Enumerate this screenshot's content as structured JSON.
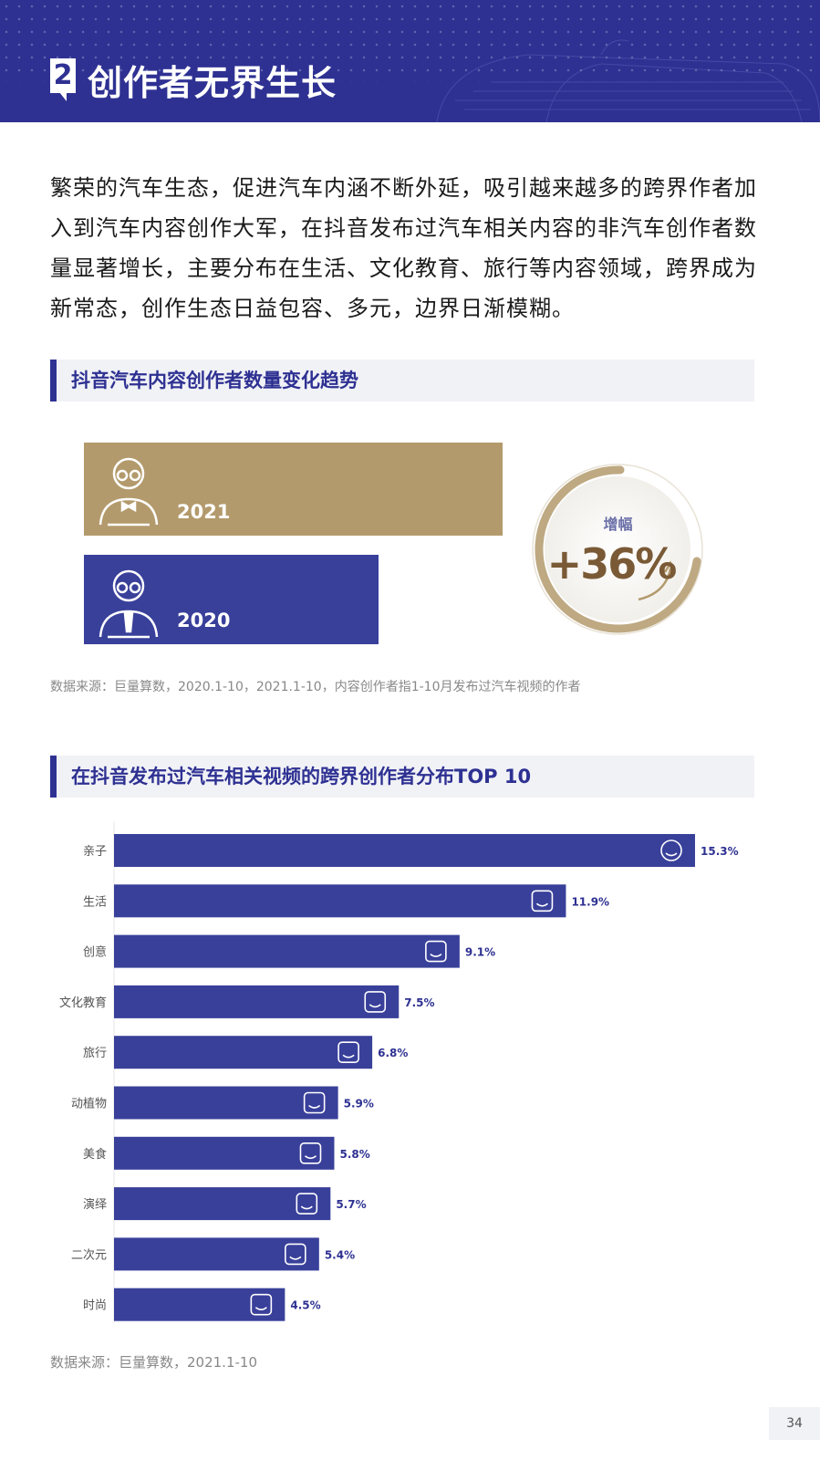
{
  "header": {
    "number": "2",
    "title": "创作者无界生长"
  },
  "intro": "繁荣的汽车生态，促进汽车内涵不断外延，吸引越来越多的跨界作者加入到汽车内容创作大军，在抖音发布过汽车相关内容的非汽车创作者数量显著增长，主要分布在生活、文化教育、旅行等内容领域，跨界成为新常态，创作生态日益包容、多元，边界日渐模糊。",
  "section1": {
    "title": "抖音汽车内容创作者数量变化趋势",
    "year_2021": "2021",
    "year_2020": "2020",
    "growth_label": "增幅",
    "growth_value": "+36%",
    "source": "数据来源：巨量算数，2020.1-10，2021.1-10，内容创作者指1-10月发布过汽车视频的作者"
  },
  "colors": {
    "primary": "#2e3192",
    "bar": "#39409a",
    "gold": "#b39a6c",
    "value_text": "#2e3192"
  },
  "chart_data": {
    "type": "bar",
    "orientation": "horizontal",
    "title": "在抖音发布过汽车相关视频的跨界创作者分布TOP 10",
    "categories": [
      "亲子",
      "生活",
      "创意",
      "文化教育",
      "旅行",
      "动植物",
      "美食",
      "演绎",
      "二次元",
      "时尚"
    ],
    "values": [
      15.3,
      11.9,
      9.1,
      7.5,
      6.8,
      5.9,
      5.8,
      5.7,
      5.4,
      4.5
    ],
    "labels": [
      "15.3%",
      "11.9%",
      "9.1%",
      "7.5%",
      "6.8%",
      "5.9%",
      "5.8%",
      "5.7%",
      "5.4%",
      "4.5%"
    ],
    "icons": [
      "baby-face-icon",
      "heart-pulse-icon",
      "lightbulb-icon",
      "graduation-cap-icon",
      "suitcase-icon",
      "plant-pot-icon",
      "burger-icon",
      "trophy-icon",
      "bow-icon",
      "comb-scissors-icon"
    ],
    "unit": "%",
    "grid": false
  },
  "section2": {
    "source": "数据来源：巨量算数，2021.1-10"
  },
  "page_number": "34"
}
